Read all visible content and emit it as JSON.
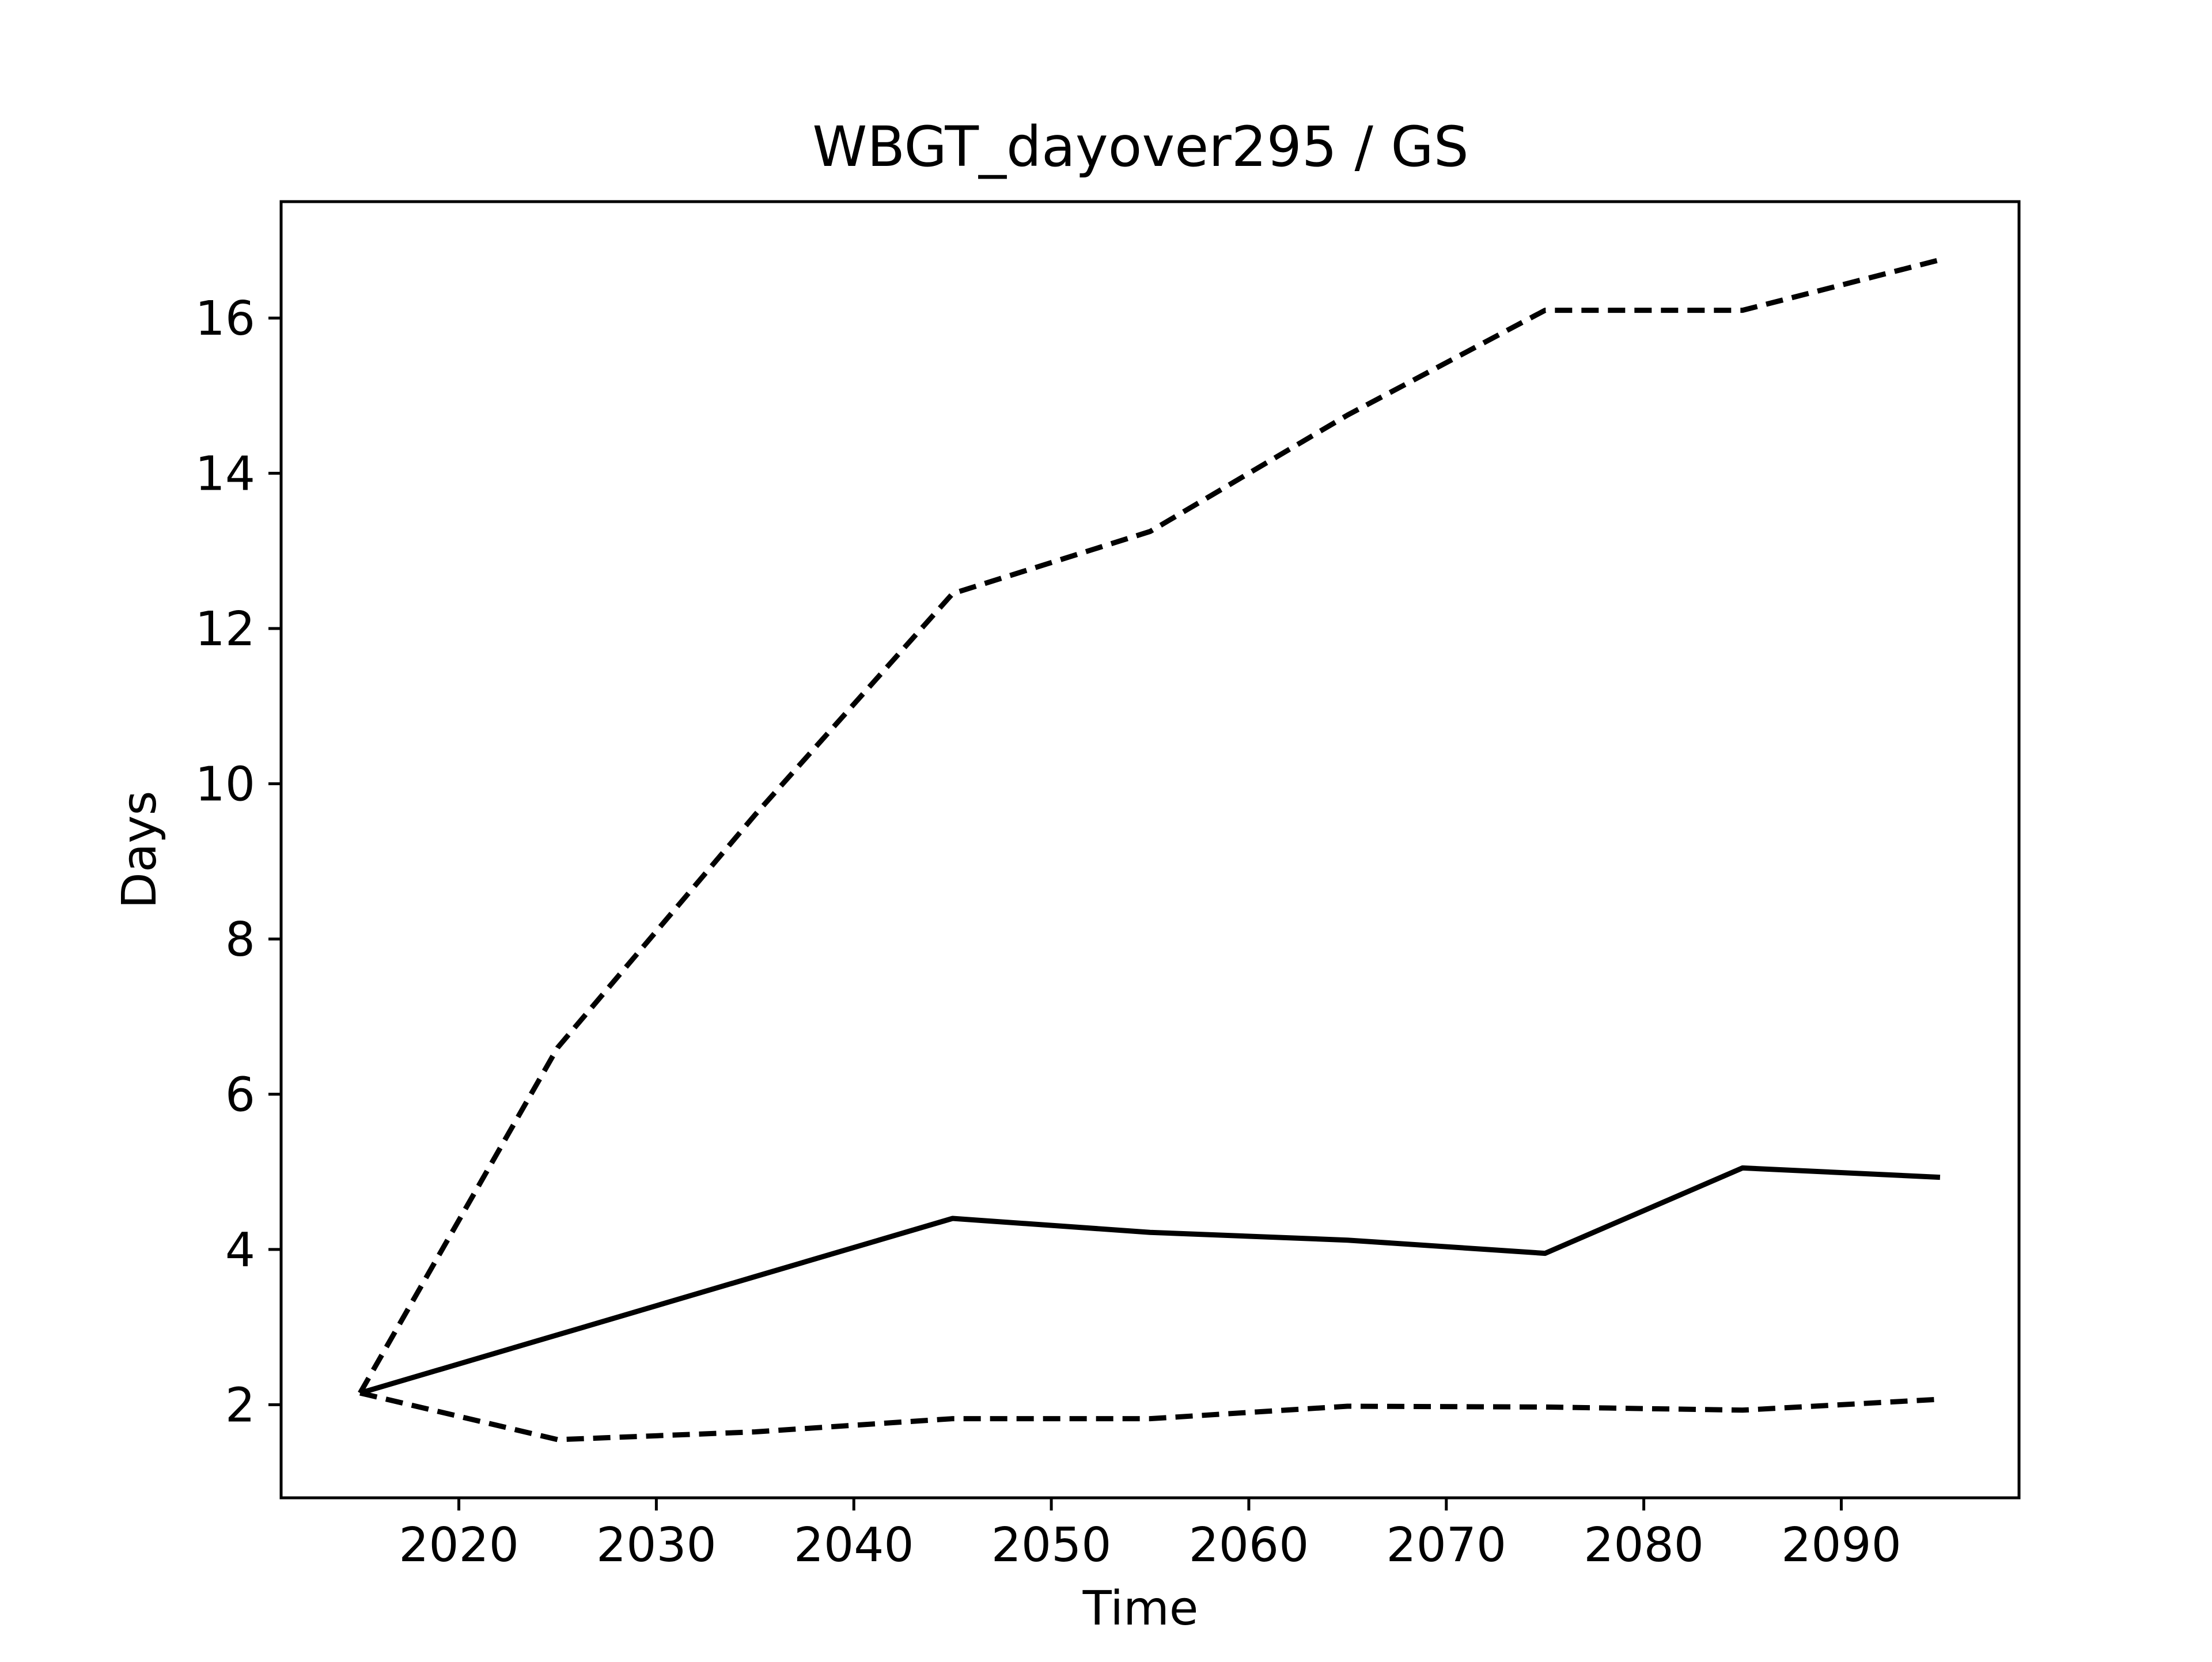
{
  "chart_data": {
    "type": "line",
    "title": "WBGT_dayover295 / GS",
    "xlabel": "Time",
    "ylabel": "Days",
    "xlim": [
      2011,
      2099
    ],
    "ylim": [
      0.8,
      17.5
    ],
    "xticks": [
      2020,
      2030,
      2040,
      2050,
      2060,
      2070,
      2080,
      2090
    ],
    "yticks": [
      2,
      4,
      6,
      8,
      10,
      12,
      14,
      16
    ],
    "grid": false,
    "legend": "none",
    "line_color": "#000000",
    "x": [
      2015,
      2025,
      2035,
      2045,
      2055,
      2065,
      2075,
      2085,
      2095
    ],
    "series": [
      {
        "style": "solid",
        "values": [
          2.15,
          2.9,
          3.65,
          4.4,
          4.22,
          4.12,
          3.95,
          5.05,
          4.93
        ]
      },
      {
        "style": "dashed",
        "values": [
          2.15,
          6.6,
          9.6,
          12.45,
          13.25,
          14.75,
          16.1,
          16.1,
          16.75
        ]
      },
      {
        "style": "dashed",
        "values": [
          2.15,
          1.55,
          1.65,
          1.82,
          1.82,
          1.98,
          1.97,
          1.93,
          2.07
        ]
      }
    ]
  }
}
